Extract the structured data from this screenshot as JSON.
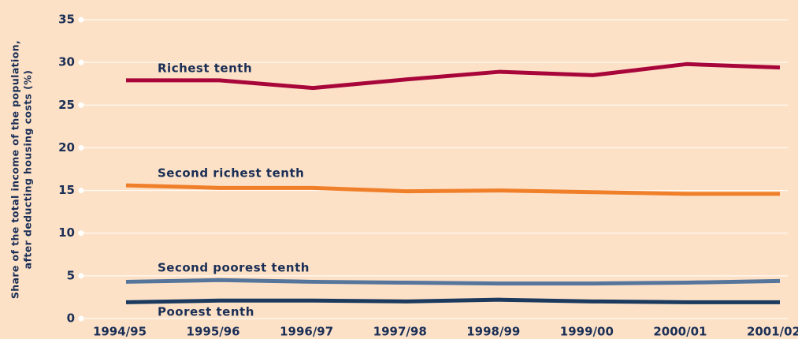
{
  "chart_data": {
    "type": "line",
    "y_label": [
      "Share of the total income of the population,",
      "after deducting housing costs (%)"
    ],
    "categories": [
      "1994/95",
      "1995/96",
      "1996/97",
      "1997/98",
      "1998/99",
      "1999/00",
      "2000/01",
      "2001/02"
    ],
    "series": [
      {
        "name": "Richest tenth",
        "color": "#a8063a",
        "values": [
          27.9,
          27.9,
          27.0,
          28.0,
          28.9,
          28.5,
          29.8,
          29.4
        ]
      },
      {
        "name": "Second richest tenth",
        "color": "#f07f2a",
        "values": [
          15.6,
          15.3,
          15.3,
          14.9,
          15.0,
          14.8,
          14.6,
          14.6
        ]
      },
      {
        "name": "Second poorest tenth",
        "color": "#56759b",
        "values": [
          4.3,
          4.5,
          4.3,
          4.2,
          4.1,
          4.1,
          4.2,
          4.4
        ]
      },
      {
        "name": "Poorest tenth",
        "color": "#1b3a5e",
        "values": [
          1.9,
          2.1,
          2.1,
          2.0,
          2.2,
          2.0,
          1.9,
          1.9
        ]
      }
    ],
    "ylim": [
      0,
      35
    ],
    "yticks": [
      0,
      5,
      10,
      15,
      20,
      25,
      30,
      35
    ],
    "grid": true
  }
}
